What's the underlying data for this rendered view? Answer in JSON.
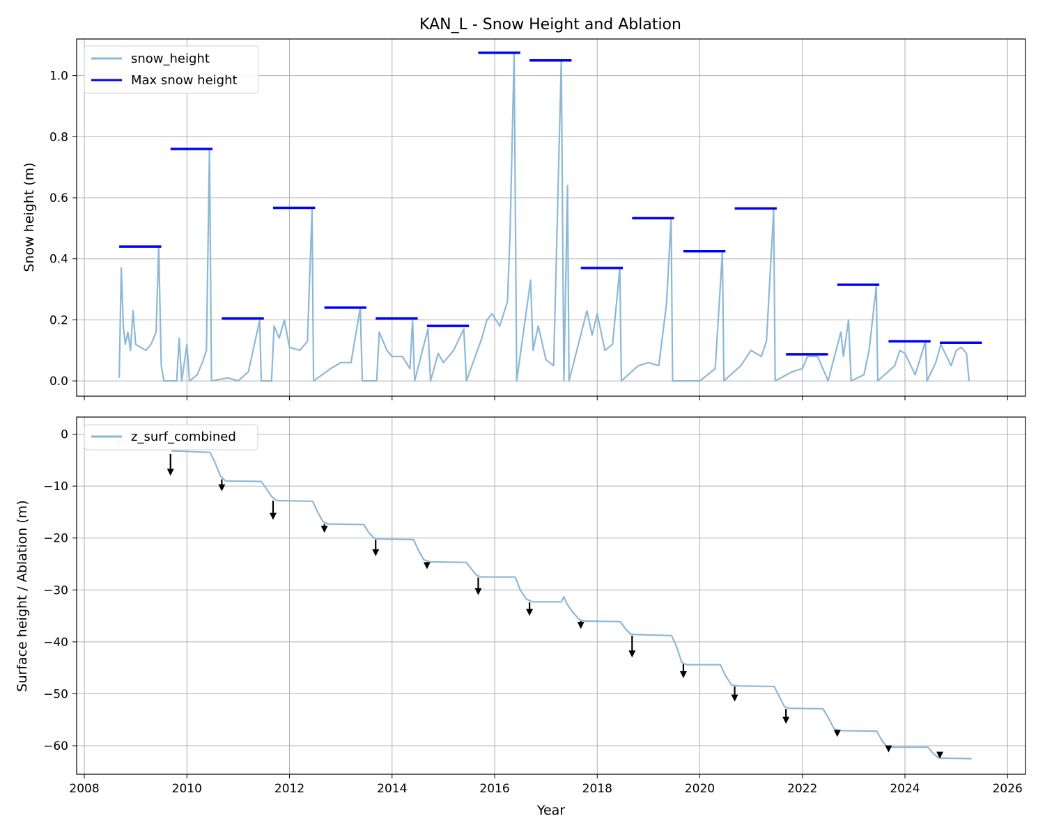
{
  "figure": {
    "title": "KAN_L - Snow Height and Ablation",
    "xlabel": "Year"
  },
  "colors": {
    "series_line": "#8cb8d8",
    "max_bar": "#0000ff",
    "arrow": "#000000",
    "arrow_faded": "#c8c8c8",
    "grid": "#b0b0b0"
  },
  "chart_data": [
    {
      "type": "line",
      "title": "KAN_L - Snow Height and Ablation",
      "xlabel": "",
      "ylabel": "Snow height (m)",
      "xlim": [
        2007.85,
        2026.35
      ],
      "ylim": [
        -0.05,
        1.12
      ],
      "x_ticks": [
        2008,
        2010,
        2012,
        2014,
        2016,
        2018,
        2020,
        2022,
        2024,
        2026
      ],
      "x_tick_labels_shown": false,
      "y_ticks": [
        0.0,
        0.2,
        0.4,
        0.6,
        0.8,
        1.0
      ],
      "y_tick_labels": [
        "0.0",
        "0.2",
        "0.4",
        "0.6",
        "0.8",
        "1.0"
      ],
      "grid": true,
      "legend_position": "upper-left",
      "legend": [
        "snow_height",
        "Max snow height"
      ],
      "series": [
        {
          "name": "snow_height",
          "points": [
            [
              2008.68,
              0.01
            ],
            [
              2008.72,
              0.37
            ],
            [
              2008.76,
              0.18
            ],
            [
              2008.8,
              0.12
            ],
            [
              2008.85,
              0.16
            ],
            [
              2008.9,
              0.1
            ],
            [
              2008.95,
              0.23
            ],
            [
              2009.0,
              0.12
            ],
            [
              2009.1,
              0.11
            ],
            [
              2009.2,
              0.1
            ],
            [
              2009.3,
              0.12
            ],
            [
              2009.4,
              0.16
            ],
            [
              2009.45,
              0.44
            ],
            [
              2009.5,
              0.05
            ],
            [
              2009.55,
              0.0
            ],
            [
              2009.8,
              0.0
            ],
            [
              2009.85,
              0.14
            ],
            [
              2009.9,
              0.0
            ],
            [
              2010.0,
              0.12
            ],
            [
              2010.05,
              0.0
            ],
            [
              2010.2,
              0.02
            ],
            [
              2010.3,
              0.06
            ],
            [
              2010.38,
              0.1
            ],
            [
              2010.44,
              0.76
            ],
            [
              2010.48,
              0.0
            ],
            [
              2010.8,
              0.01
            ],
            [
              2011.0,
              0.0
            ],
            [
              2011.2,
              0.03
            ],
            [
              2011.42,
              0.2
            ],
            [
              2011.45,
              0.0
            ],
            [
              2011.65,
              0.0
            ],
            [
              2011.7,
              0.18
            ],
            [
              2011.8,
              0.14
            ],
            [
              2011.9,
              0.2
            ],
            [
              2012.0,
              0.11
            ],
            [
              2012.2,
              0.1
            ],
            [
              2012.35,
              0.13
            ],
            [
              2012.44,
              0.56
            ],
            [
              2012.47,
              0.0
            ],
            [
              2012.8,
              0.04
            ],
            [
              2013.0,
              0.06
            ],
            [
              2013.2,
              0.06
            ],
            [
              2013.38,
              0.24
            ],
            [
              2013.42,
              0.0
            ],
            [
              2013.7,
              0.0
            ],
            [
              2013.75,
              0.16
            ],
            [
              2013.9,
              0.1
            ],
            [
              2014.0,
              0.08
            ],
            [
              2014.2,
              0.08
            ],
            [
              2014.35,
              0.04
            ],
            [
              2014.4,
              0.2
            ],
            [
              2014.44,
              0.0
            ],
            [
              2014.7,
              0.17
            ],
            [
              2014.75,
              0.0
            ],
            [
              2014.9,
              0.09
            ],
            [
              2015.0,
              0.06
            ],
            [
              2015.2,
              0.1
            ],
            [
              2015.4,
              0.17
            ],
            [
              2015.45,
              0.0
            ],
            [
              2015.75,
              0.14
            ],
            [
              2015.85,
              0.2
            ],
            [
              2015.95,
              0.22
            ],
            [
              2016.1,
              0.18
            ],
            [
              2016.25,
              0.26
            ],
            [
              2016.3,
              0.48
            ],
            [
              2016.38,
              1.07
            ],
            [
              2016.43,
              0.0
            ],
            [
              2016.7,
              0.33
            ],
            [
              2016.75,
              0.1
            ],
            [
              2016.85,
              0.18
            ],
            [
              2017.0,
              0.07
            ],
            [
              2017.15,
              0.05
            ],
            [
              2017.3,
              1.05
            ],
            [
              2017.35,
              0.0
            ],
            [
              2017.42,
              0.64
            ],
            [
              2017.45,
              0.0
            ],
            [
              2017.8,
              0.23
            ],
            [
              2017.9,
              0.15
            ],
            [
              2018.0,
              0.22
            ],
            [
              2018.15,
              0.1
            ],
            [
              2018.3,
              0.12
            ],
            [
              2018.44,
              0.37
            ],
            [
              2018.47,
              0.0
            ],
            [
              2018.8,
              0.05
            ],
            [
              2019.0,
              0.06
            ],
            [
              2019.2,
              0.05
            ],
            [
              2019.35,
              0.25
            ],
            [
              2019.44,
              0.53
            ],
            [
              2019.47,
              0.0
            ],
            [
              2019.8,
              0.0
            ],
            [
              2020.0,
              0.0
            ],
            [
              2020.3,
              0.04
            ],
            [
              2020.44,
              0.42
            ],
            [
              2020.47,
              0.0
            ],
            [
              2020.8,
              0.05
            ],
            [
              2021.0,
              0.1
            ],
            [
              2021.2,
              0.08
            ],
            [
              2021.3,
              0.13
            ],
            [
              2021.44,
              0.56
            ],
            [
              2021.47,
              0.0
            ],
            [
              2021.8,
              0.03
            ],
            [
              2022.0,
              0.04
            ],
            [
              2022.1,
              0.08
            ],
            [
              2022.3,
              0.08
            ],
            [
              2022.45,
              0.02
            ],
            [
              2022.5,
              0.0
            ],
            [
              2022.75,
              0.16
            ],
            [
              2022.8,
              0.08
            ],
            [
              2022.9,
              0.2
            ],
            [
              2022.95,
              0.0
            ],
            [
              2023.2,
              0.02
            ],
            [
              2023.3,
              0.1
            ],
            [
              2023.44,
              0.31
            ],
            [
              2023.47,
              0.0
            ],
            [
              2023.8,
              0.05
            ],
            [
              2023.9,
              0.1
            ],
            [
              2024.0,
              0.09
            ],
            [
              2024.2,
              0.02
            ],
            [
              2024.4,
              0.13
            ],
            [
              2024.43,
              0.0
            ],
            [
              2024.6,
              0.06
            ],
            [
              2024.7,
              0.12
            ],
            [
              2024.9,
              0.05
            ],
            [
              2025.0,
              0.1
            ],
            [
              2025.1,
              0.11
            ],
            [
              2025.2,
              0.09
            ],
            [
              2025.25,
              0.0
            ]
          ]
        },
        {
          "name": "Max snow height",
          "segments": [
            [
              2008.68,
              2009.5,
              0.44
            ],
            [
              2009.68,
              2010.5,
              0.76
            ],
            [
              2010.68,
              2011.5,
              0.205
            ],
            [
              2011.68,
              2012.5,
              0.567
            ],
            [
              2012.68,
              2013.5,
              0.24
            ],
            [
              2013.68,
              2014.5,
              0.205
            ],
            [
              2014.68,
              2015.5,
              0.18
            ],
            [
              2015.68,
              2016.5,
              1.075
            ],
            [
              2016.68,
              2017.5,
              1.05
            ],
            [
              2017.68,
              2018.5,
              0.37
            ],
            [
              2018.68,
              2019.5,
              0.533
            ],
            [
              2019.68,
              2020.5,
              0.425
            ],
            [
              2020.68,
              2021.5,
              0.565
            ],
            [
              2021.68,
              2022.5,
              0.087
            ],
            [
              2022.68,
              2023.5,
              0.315
            ],
            [
              2023.68,
              2024.5,
              0.13
            ],
            [
              2024.68,
              2025.5,
              0.125
            ]
          ]
        }
      ]
    },
    {
      "type": "line",
      "title": "",
      "xlabel": "Year",
      "ylabel": "Surface height / Ablation (m)",
      "xlim": [
        2007.85,
        2026.35
      ],
      "ylim": [
        -65.5,
        3.3
      ],
      "x_ticks": [
        2008,
        2010,
        2012,
        2014,
        2016,
        2018,
        2020,
        2022,
        2024,
        2026
      ],
      "x_tick_labels": [
        "2008",
        "2010",
        "2012",
        "2014",
        "2016",
        "2018",
        "2020",
        "2022",
        "2024",
        "2026"
      ],
      "y_ticks": [
        0,
        -10,
        -20,
        -30,
        -40,
        -50,
        -60
      ],
      "y_tick_labels": [
        "0",
        "−10",
        "−20",
        "−30",
        "−40",
        "−50",
        "−60"
      ],
      "grid": true,
      "legend_position": "upper-left",
      "legend": [
        "z_surf_combined"
      ],
      "series": [
        {
          "name": "z_surf_combined",
          "points": [
            [
              2009.7,
              -3.2
            ],
            [
              2010.45,
              -3.5
            ],
            [
              2010.55,
              -5.5
            ],
            [
              2010.65,
              -8.0
            ],
            [
              2010.75,
              -9.0
            ],
            [
              2011.45,
              -9.1
            ],
            [
              2011.55,
              -10.5
            ],
            [
              2011.65,
              -12.0
            ],
            [
              2011.75,
              -12.8
            ],
            [
              2012.45,
              -12.9
            ],
            [
              2012.55,
              -15.0
            ],
            [
              2012.65,
              -16.8
            ],
            [
              2012.75,
              -17.3
            ],
            [
              2013.45,
              -17.4
            ],
            [
              2013.55,
              -19.0
            ],
            [
              2013.65,
              -20.0
            ],
            [
              2013.75,
              -20.2
            ],
            [
              2014.42,
              -20.3
            ],
            [
              2014.52,
              -22.5
            ],
            [
              2014.62,
              -24.2
            ],
            [
              2014.75,
              -24.6
            ],
            [
              2015.45,
              -24.7
            ],
            [
              2015.55,
              -26.0
            ],
            [
              2015.65,
              -27.2
            ],
            [
              2015.75,
              -27.5
            ],
            [
              2016.4,
              -27.5
            ],
            [
              2016.5,
              -30.0
            ],
            [
              2016.62,
              -31.8
            ],
            [
              2016.75,
              -32.3
            ],
            [
              2017.3,
              -32.3
            ],
            [
              2017.35,
              -31.3
            ],
            [
              2017.4,
              -32.5
            ],
            [
              2017.5,
              -34.0
            ],
            [
              2017.65,
              -35.7
            ],
            [
              2017.75,
              -36.0
            ],
            [
              2018.45,
              -36.1
            ],
            [
              2018.55,
              -37.5
            ],
            [
              2018.65,
              -38.5
            ],
            [
              2018.75,
              -38.6
            ],
            [
              2019.45,
              -38.8
            ],
            [
              2019.55,
              -41.0
            ],
            [
              2019.65,
              -44.0
            ],
            [
              2019.75,
              -44.4
            ],
            [
              2020.4,
              -44.4
            ],
            [
              2020.5,
              -46.5
            ],
            [
              2020.62,
              -48.3
            ],
            [
              2020.75,
              -48.5
            ],
            [
              2021.45,
              -48.6
            ],
            [
              2021.55,
              -50.5
            ],
            [
              2021.65,
              -52.5
            ],
            [
              2021.75,
              -52.8
            ],
            [
              2022.4,
              -52.9
            ],
            [
              2022.5,
              -54.5
            ],
            [
              2022.62,
              -56.8
            ],
            [
              2022.75,
              -57.1
            ],
            [
              2023.45,
              -57.2
            ],
            [
              2023.55,
              -59.0
            ],
            [
              2023.65,
              -60.2
            ],
            [
              2023.75,
              -60.3
            ],
            [
              2024.45,
              -60.3
            ],
            [
              2024.55,
              -61.5
            ],
            [
              2024.65,
              -62.3
            ],
            [
              2024.75,
              -62.4
            ],
            [
              2025.3,
              -62.5
            ]
          ]
        },
        {
          "name": "ablation_arrows",
          "arrows": [
            [
              2008.68,
              -0.8,
              -2.5,
              "faded"
            ],
            [
              2009.68,
              -3.8,
              -8.0,
              "normal"
            ],
            [
              2010.68,
              -8.7,
              -11.0,
              "normal"
            ],
            [
              2011.68,
              -12.8,
              -16.5,
              "normal"
            ],
            [
              2012.68,
              -17.3,
              -19.0,
              "normal"
            ],
            [
              2013.68,
              -20.3,
              -23.5,
              "normal"
            ],
            [
              2014.68,
              -24.6,
              -26.0,
              "normal"
            ],
            [
              2015.68,
              -27.6,
              -31.0,
              "normal"
            ],
            [
              2016.68,
              -32.4,
              -35.0,
              "normal"
            ],
            [
              2017.68,
              -36.0,
              -37.5,
              "normal"
            ],
            [
              2018.68,
              -38.8,
              -43.0,
              "normal"
            ],
            [
              2019.68,
              -44.3,
              -47.0,
              "normal"
            ],
            [
              2020.68,
              -48.6,
              -51.5,
              "normal"
            ],
            [
              2021.68,
              -52.9,
              -55.8,
              "normal"
            ],
            [
              2022.68,
              -57.1,
              -58.3,
              "normal"
            ],
            [
              2023.68,
              -60.3,
              -61.3,
              "normal"
            ],
            [
              2024.68,
              -61.5,
              -62.5,
              "normal"
            ]
          ]
        }
      ]
    }
  ]
}
